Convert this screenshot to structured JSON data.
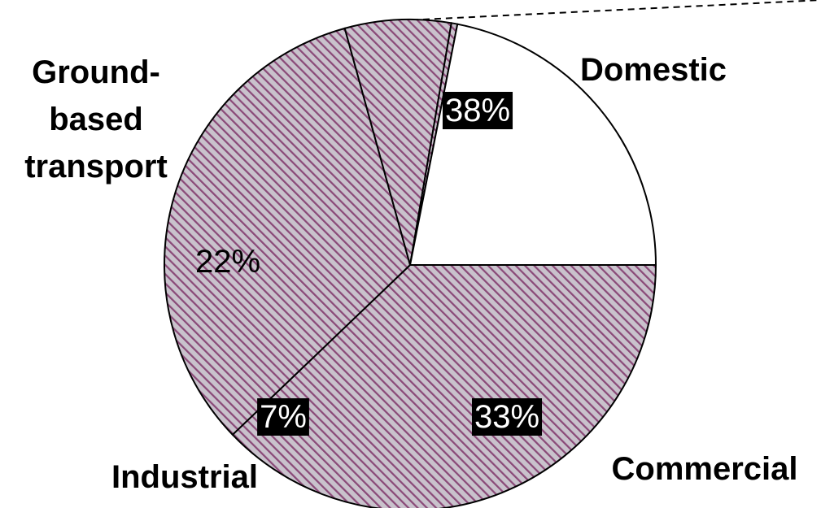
{
  "chart_data": {
    "type": "pie",
    "title": "",
    "slices": [
      {
        "label": "Domestic",
        "value": 38,
        "value_label": "38%",
        "fill": "hatched",
        "label_style": "inverse"
      },
      {
        "label": "Commercial",
        "value": 33,
        "value_label": "33%",
        "fill": "hatched",
        "label_style": "inverse"
      },
      {
        "label": "Industrial",
        "value": 7,
        "value_label": "7%",
        "fill": "hatched",
        "label_style": "inverse"
      },
      {
        "label": "",
        "value": 0.4,
        "value_label": "",
        "fill": "hatched",
        "label_style": "none"
      },
      {
        "label": "Ground-based transport",
        "value": 22,
        "value_label": "22%",
        "fill": "white",
        "label_style": "plain"
      }
    ],
    "category_label_lines": {
      "Domestic": [
        "Domestic"
      ],
      "Commercial": [
        "Commercial"
      ],
      "Industrial": [
        "Industrial"
      ],
      "Ground-based transport": [
        "Ground-",
        "based",
        "transport"
      ]
    },
    "start_angle_deg": 0,
    "direction": "clockwise",
    "legend": "none",
    "leader_line": "dashed"
  },
  "colors": {
    "hatch_line": "#8a4a78",
    "hatch_background": "#c9c2cc",
    "white_slice": "#ffffff",
    "outline": "#000000",
    "value_label_background": "#000000",
    "value_label_text_inverse": "#ffffff",
    "value_label_text_plain": "#000000"
  }
}
